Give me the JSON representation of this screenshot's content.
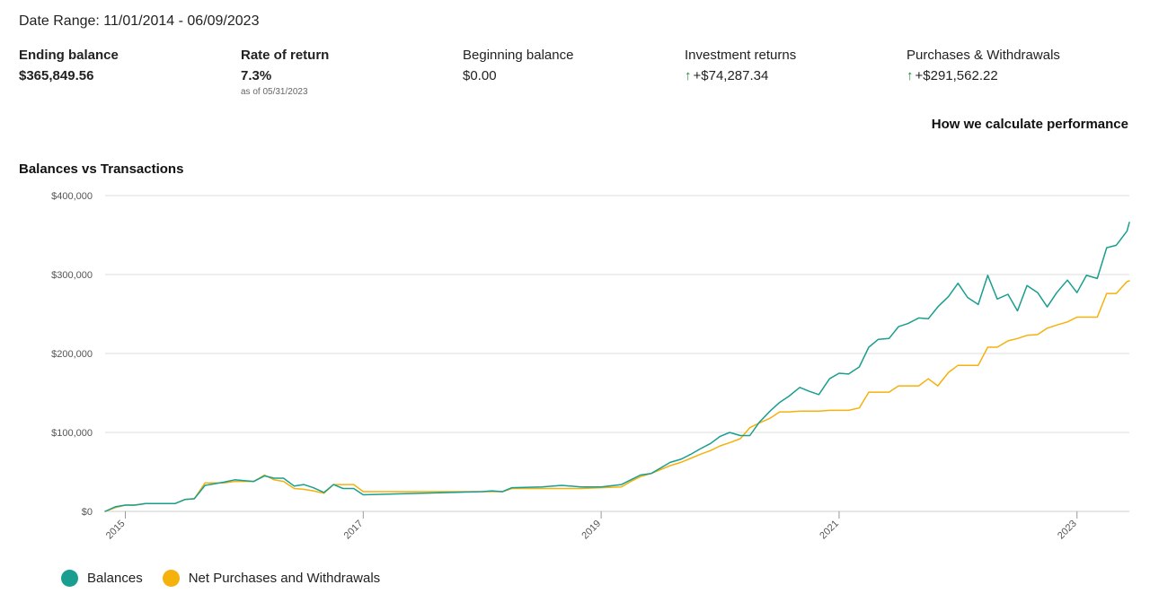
{
  "header": {
    "date_range": "Date Range: 11/01/2014 - 06/09/2023"
  },
  "stats": {
    "ending_balance": {
      "label": "Ending balance",
      "value": "$365,849.56"
    },
    "rate_of_return": {
      "label": "Rate of return",
      "value": "7.3%",
      "sub": "as of 05/31/2023"
    },
    "beginning_balance": {
      "label": "Beginning balance",
      "value": "$0.00"
    },
    "investment_returns": {
      "label": "Investment returns",
      "arrow": "↑",
      "value": "+$74,287.34"
    },
    "purchases_withdrawals": {
      "label": "Purchases & Withdrawals",
      "arrow": "↑",
      "value": "+$291,562.22"
    }
  },
  "links": {
    "how_we_calculate": "How we calculate performance"
  },
  "colors": {
    "balances": "#1a9e8f",
    "net": "#f5b10c",
    "up_arrow": "#1f8a3b",
    "grid": "#dddddd"
  },
  "chart_data": {
    "type": "line",
    "title": "Balances vs Transactions",
    "xlabel": "",
    "ylabel": "",
    "x_range": [
      2014.83,
      2023.44
    ],
    "ylim": [
      0,
      400000
    ],
    "y_ticks": [
      0,
      100000,
      200000,
      300000,
      400000
    ],
    "y_tick_labels": [
      "$0",
      "$100,000",
      "$200,000",
      "$300,000",
      "$400,000"
    ],
    "x_ticks": [
      2015,
      2017,
      2019,
      2021,
      2023
    ],
    "x_tick_labels": [
      "2015",
      "2017",
      "2019",
      "2021",
      "2023"
    ],
    "legend": {
      "position": "bottom-left"
    },
    "series": [
      {
        "name": "Balances",
        "color": "#1a9e8f",
        "x": [
          2014.83,
          2014.92,
          2015.0,
          2015.08,
          2015.17,
          2015.25,
          2015.33,
          2015.42,
          2015.5,
          2015.58,
          2015.67,
          2015.75,
          2015.83,
          2015.92,
          2016.0,
          2016.08,
          2016.17,
          2016.25,
          2016.33,
          2016.42,
          2016.5,
          2016.58,
          2016.67,
          2016.75,
          2016.83,
          2016.92,
          2017.0,
          2017.25,
          2017.5,
          2017.75,
          2018.0,
          2018.08,
          2018.17,
          2018.25,
          2018.5,
          2018.67,
          2018.83,
          2019.0,
          2019.17,
          2019.25,
          2019.33,
          2019.42,
          2019.5,
          2019.58,
          2019.67,
          2019.75,
          2019.83,
          2019.92,
          2020.0,
          2020.08,
          2020.17,
          2020.25,
          2020.33,
          2020.42,
          2020.5,
          2020.58,
          2020.67,
          2020.75,
          2020.83,
          2020.92,
          2021.0,
          2021.08,
          2021.17,
          2021.25,
          2021.33,
          2021.42,
          2021.5,
          2021.58,
          2021.67,
          2021.75,
          2021.83,
          2021.92,
          2022.0,
          2022.08,
          2022.17,
          2022.25,
          2022.33,
          2022.42,
          2022.5,
          2022.58,
          2022.67,
          2022.75,
          2022.83,
          2022.92,
          2023.0,
          2023.08,
          2023.17,
          2023.25,
          2023.33,
          2023.42,
          2023.44
        ],
        "values": [
          0,
          6000,
          8000,
          8000,
          10000,
          10000,
          10000,
          10000,
          15000,
          16000,
          33000,
          35000,
          37000,
          40000,
          39000,
          38000,
          45000,
          42000,
          42000,
          32000,
          34000,
          30000,
          24000,
          34000,
          29000,
          29000,
          21000,
          22000,
          23000,
          24000,
          25000,
          26000,
          25000,
          30000,
          31000,
          33000,
          31000,
          31000,
          34000,
          40000,
          46000,
          48000,
          55000,
          62000,
          66000,
          72000,
          79000,
          86000,
          95000,
          100000,
          96000,
          96000,
          113000,
          127000,
          138000,
          146000,
          157000,
          152000,
          148000,
          168000,
          175000,
          174000,
          183000,
          208000,
          218000,
          219000,
          234000,
          238000,
          245000,
          244000,
          259000,
          272000,
          289000,
          271000,
          262000,
          299000,
          269000,
          275000,
          254000,
          286000,
          277000,
          259000,
          277000,
          293000,
          277000,
          299000,
          295000,
          334000,
          337000,
          355000,
          366000
        ]
      },
      {
        "name": "Net Purchases and Withdrawals",
        "color": "#f5b10c",
        "x": [
          2014.83,
          2014.92,
          2015.0,
          2015.08,
          2015.17,
          2015.25,
          2015.33,
          2015.42,
          2015.5,
          2015.58,
          2015.67,
          2015.75,
          2015.83,
          2015.92,
          2016.0,
          2016.08,
          2016.17,
          2016.25,
          2016.33,
          2016.42,
          2016.5,
          2016.58,
          2016.67,
          2016.75,
          2016.83,
          2016.92,
          2017.0,
          2017.25,
          2017.5,
          2017.75,
          2018.0,
          2018.08,
          2018.17,
          2018.25,
          2018.5,
          2018.67,
          2018.83,
          2019.0,
          2019.17,
          2019.25,
          2019.33,
          2019.42,
          2019.5,
          2019.58,
          2019.67,
          2019.75,
          2019.83,
          2019.92,
          2020.0,
          2020.08,
          2020.17,
          2020.25,
          2020.33,
          2020.42,
          2020.5,
          2020.58,
          2020.67,
          2020.75,
          2020.83,
          2020.92,
          2021.0,
          2021.08,
          2021.17,
          2021.25,
          2021.33,
          2021.42,
          2021.5,
          2021.58,
          2021.67,
          2021.75,
          2021.83,
          2021.92,
          2022.0,
          2022.08,
          2022.17,
          2022.25,
          2022.33,
          2022.42,
          2022.5,
          2022.58,
          2022.67,
          2022.75,
          2022.83,
          2022.92,
          2023.0,
          2023.08,
          2023.17,
          2023.25,
          2023.33,
          2023.42,
          2023.44
        ],
        "values": [
          0,
          5000,
          8000,
          8000,
          10000,
          10000,
          10000,
          10000,
          15000,
          16000,
          36000,
          36000,
          36000,
          38000,
          38000,
          38000,
          46000,
          40000,
          38000,
          29000,
          28000,
          26000,
          23000,
          34000,
          34000,
          34000,
          25000,
          25000,
          25000,
          25000,
          25000,
          25000,
          25000,
          29000,
          29000,
          29000,
          29000,
          30000,
          31000,
          38000,
          44000,
          48000,
          53000,
          58000,
          62000,
          67000,
          72000,
          77000,
          83000,
          87000,
          92000,
          106000,
          112000,
          118000,
          126000,
          126000,
          127000,
          127000,
          127000,
          128000,
          128000,
          128000,
          131000,
          151000,
          151000,
          151000,
          159000,
          159000,
          159000,
          168000,
          159000,
          176000,
          185000,
          185000,
          185000,
          208000,
          208000,
          216000,
          219000,
          223000,
          224000,
          232000,
          236000,
          240000,
          246000,
          246000,
          246000,
          276000,
          276000,
          291000,
          292000
        ]
      }
    ]
  }
}
